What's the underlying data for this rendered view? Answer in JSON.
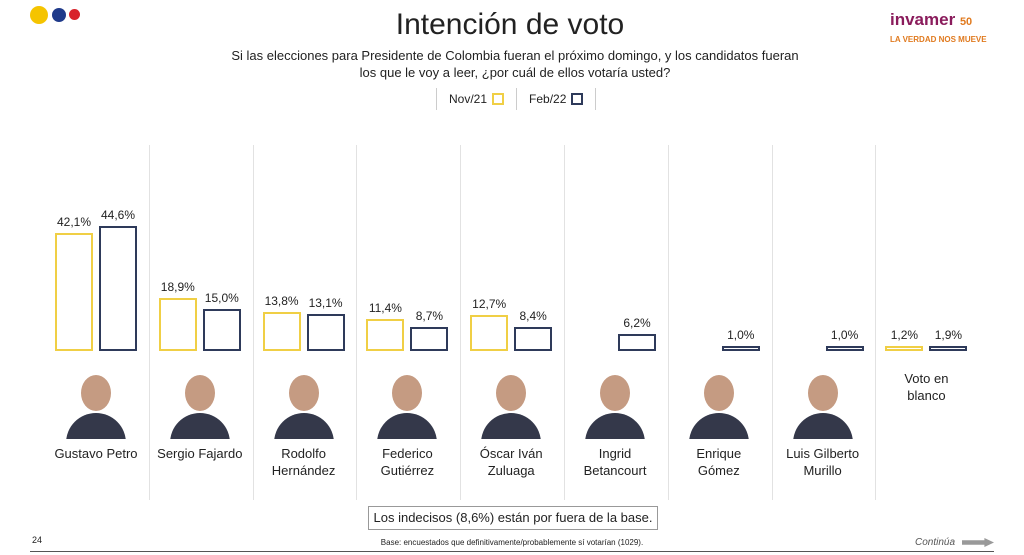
{
  "chart_data": {
    "type": "bar",
    "title": "Intención de voto",
    "subtitle": "Si las elecciones para Presidente de Colombia fueran el próximo domingo, y los candidatos fueran los que le voy a leer, ¿por cuál de ellos votaría usted?",
    "categories": [
      "Gustavo Petro",
      "Sergio Fajardo",
      "Rodolfo Hernández",
      "Federico Gutiérrez",
      "Óscar Iván Zuluaga",
      "Ingrid Betancourt",
      "Enrique Gómez",
      "Luis Gilberto Murillo",
      "Voto en blanco"
    ],
    "series": [
      {
        "name": "Nov/21",
        "color": "#f0cf45",
        "values": [
          42.1,
          18.9,
          13.8,
          11.4,
          12.7,
          null,
          null,
          null,
          1.2
        ],
        "value_labels": [
          "42,1%",
          "18,9%",
          "13,8%",
          "11,4%",
          "12,7%",
          null,
          null,
          null,
          "1,2%"
        ]
      },
      {
        "name": "Feb/22",
        "color": "#2e3a5a",
        "values": [
          44.6,
          15.0,
          13.1,
          8.7,
          8.4,
          6.2,
          1.0,
          1.0,
          1.9
        ],
        "value_labels": [
          "44,6%",
          "15,0%",
          "13,1%",
          "8,7%",
          "8,4%",
          "6,2%",
          "1,0%",
          "1,0%",
          "1,9%"
        ]
      }
    ],
    "note": "Los indecisos (8,6%) están por fuera de la base.",
    "footnote": "Base: encuestados que definitivamente/probablemente sí votarían (1029).",
    "page_number": "24",
    "continue_label": "Continúa",
    "logo": {
      "brand": "invamer",
      "anniversary": "50",
      "tagline": "LA VERDAD NOS MUEVE"
    }
  }
}
